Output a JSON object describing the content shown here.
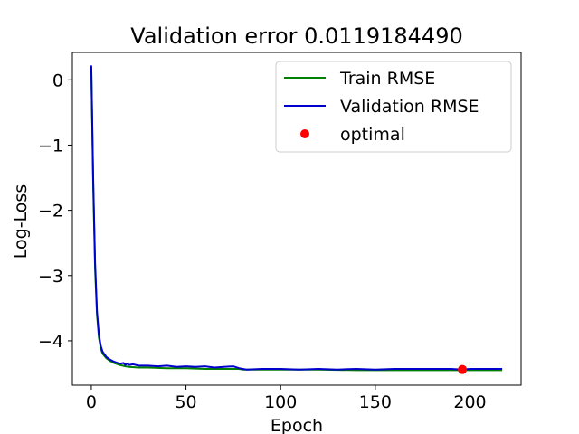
{
  "chart_data": {
    "type": "line",
    "title": "Validation error 0.0119184490",
    "xlabel": "Epoch",
    "ylabel": "Log-Loss",
    "xlim": [
      -10,
      227
    ],
    "ylim": [
      -4.68,
      0.42
    ],
    "xticks": [
      0,
      50,
      100,
      150,
      200
    ],
    "yticks": [
      0,
      -1,
      -2,
      -3,
      -4
    ],
    "tick_labels": {
      "x": [
        "0",
        "50",
        "100",
        "150",
        "200"
      ],
      "y": [
        "0",
        "−1",
        "−2",
        "−3",
        "−4"
      ]
    },
    "grid": false,
    "legend_position": "upper-right",
    "series": [
      {
        "name": "Train RMSE",
        "color": "#008000",
        "x": [
          0,
          1,
          2,
          3,
          4,
          5,
          6,
          8,
          10,
          12,
          15,
          18,
          20,
          25,
          30,
          40,
          50,
          60,
          70,
          78,
          80,
          90,
          100,
          120,
          140,
          160,
          180,
          196,
          200,
          210,
          217
        ],
        "y": [
          0.2,
          -1.6,
          -2.9,
          -3.6,
          -3.95,
          -4.12,
          -4.2,
          -4.27,
          -4.31,
          -4.34,
          -4.37,
          -4.39,
          -4.4,
          -4.41,
          -4.41,
          -4.42,
          -4.42,
          -4.43,
          -4.43,
          -4.43,
          -4.44,
          -4.44,
          -4.44,
          -4.44,
          -4.45,
          -4.45,
          -4.45,
          -4.45,
          -4.45,
          -4.45,
          -4.45
        ]
      },
      {
        "name": "Validation RMSE",
        "color": "#0000cc",
        "x": [
          0,
          1,
          2,
          3,
          4,
          5,
          6,
          8,
          10,
          12,
          15,
          17,
          18,
          19,
          20,
          22,
          25,
          30,
          35,
          40,
          45,
          50,
          55,
          60,
          65,
          70,
          75,
          78,
          80,
          82,
          90,
          100,
          110,
          120,
          130,
          140,
          150,
          160,
          170,
          180,
          190,
          196,
          200,
          210,
          217
        ],
        "y": [
          0.22,
          -1.5,
          -2.8,
          -3.55,
          -3.9,
          -4.08,
          -4.17,
          -4.25,
          -4.29,
          -4.32,
          -4.35,
          -4.34,
          -4.37,
          -4.35,
          -4.37,
          -4.36,
          -4.38,
          -4.38,
          -4.39,
          -4.38,
          -4.4,
          -4.39,
          -4.4,
          -4.39,
          -4.41,
          -4.4,
          -4.39,
          -4.42,
          -4.43,
          -4.44,
          -4.43,
          -4.43,
          -4.44,
          -4.43,
          -4.44,
          -4.43,
          -4.44,
          -4.43,
          -4.43,
          -4.43,
          -4.43,
          -4.44,
          -4.43,
          -4.43,
          -4.43
        ]
      }
    ],
    "optimal": {
      "name": "optimal",
      "color": "#ff0000",
      "x": 196,
      "y": -4.44
    }
  }
}
